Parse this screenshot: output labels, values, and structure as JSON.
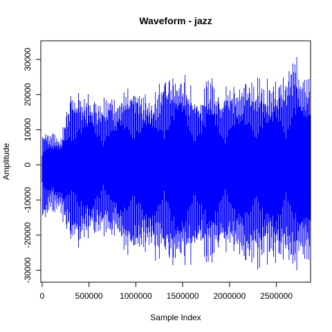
{
  "chart_data": {
    "type": "line",
    "title": "Waveform - jazz",
    "xlabel": "Sample Index",
    "ylabel": "Amplitude",
    "xlim": [
      -14300,
      2864300
    ],
    "ylim": [
      -33400,
      35300
    ],
    "x_ticks": [
      0,
      500000,
      1000000,
      1500000,
      2000000,
      2500000
    ],
    "x_tick_labels": [
      "0",
      "500000",
      "1000000",
      "1500000",
      "2000000",
      "2500000"
    ],
    "y_ticks": [
      -30000,
      -20000,
      -10000,
      0,
      10000,
      20000,
      30000
    ],
    "y_tick_labels": [
      "-30000",
      "-20000",
      "-10000",
      "0",
      "10000",
      "20000",
      "30000"
    ],
    "grid": false,
    "series": [
      {
        "color": "#0000ff",
        "x": [
          0,
          100000,
          200000,
          300000,
          400000,
          500000,
          600000,
          700000,
          800000,
          900000,
          1000000,
          1100000,
          1200000,
          1300000,
          1400000,
          1500000,
          1600000,
          1700000,
          1800000,
          1900000,
          2000000,
          2100000,
          2200000,
          2300000,
          2400000,
          2500000,
          2600000,
          2700000,
          2800000
        ],
        "y_max": [
          10500,
          9500,
          8000,
          22000,
          20500,
          21000,
          19500,
          21000,
          20000,
          21500,
          24000,
          21000,
          21000,
          27500,
          26500,
          28000,
          22000,
          21000,
          27000,
          21500,
          24000,
          24000,
          25000,
          25000,
          25000,
          25000,
          27000,
          32000,
          28000
        ],
        "y_min": [
          -19500,
          -13500,
          -15000,
          -23500,
          -24000,
          -21500,
          -22000,
          -21500,
          -22500,
          -25500,
          -28000,
          -26000,
          -28500,
          -27500,
          -31000,
          -30000,
          -28500,
          -26500,
          -30000,
          -27000,
          -25000,
          -28500,
          -29500,
          -30000,
          -29000,
          -29500,
          -28500,
          -30500,
          -31000
        ]
      }
    ]
  }
}
